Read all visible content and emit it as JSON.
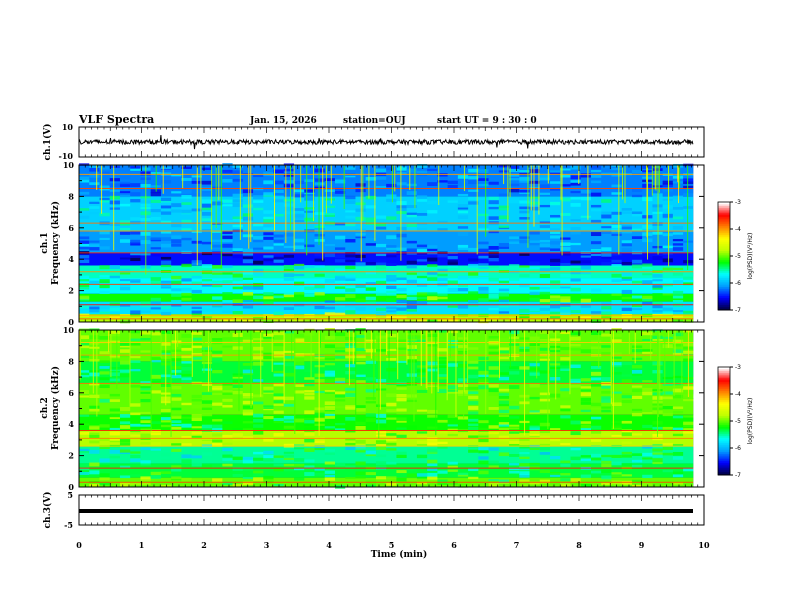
{
  "header": {
    "title": "VLF Spectra",
    "date": "Jan. 15, 2026",
    "station": "station=OUJ",
    "start_ut": "start UT =  9 : 30 : 0"
  },
  "colors": {
    "spectrogram_scale": [
      "#000040",
      "#0000ff",
      "#00a0ff",
      "#00ffff",
      "#00ff00",
      "#c0ff00",
      "#ffff00",
      "#ff8000",
      "#ff0000",
      "#ffffff"
    ]
  },
  "chart_data": [
    {
      "type": "line",
      "panel": "ch1-waveform",
      "ylabel": "ch.1(V)",
      "ylim": [
        -10,
        10
      ],
      "ytick_labels": [
        "10",
        "-10"
      ],
      "description_values": {
        "baseline_v": 0,
        "noise_amplitude_v": 1.5
      }
    },
    {
      "type": "heatmap",
      "panel": "ch1-spectrogram",
      "ylabel": "ch.1\nFrequency (kHz)",
      "ylim": [
        0,
        10
      ],
      "ytick_labels": [
        "0",
        "2",
        "4",
        "6",
        "8",
        "10"
      ],
      "x_end_min": 9.8,
      "colorbar": {
        "label": "log(PSD)(V²/Hz)",
        "range": [
          -7,
          -3
        ],
        "tick_labels": [
          "-3",
          "-4",
          "-5",
          "-6",
          "-7"
        ]
      },
      "bands_khz": [
        {
          "f0": 0.0,
          "f1": 0.5,
          "level": 0.55
        },
        {
          "f0": 0.5,
          "f1": 1.3,
          "level": 0.3
        },
        {
          "f0": 1.3,
          "f1": 1.8,
          "level": 0.45
        },
        {
          "f0": 1.8,
          "f1": 2.8,
          "level": 0.33
        },
        {
          "f0": 2.8,
          "f1": 3.6,
          "level": 0.36
        },
        {
          "f0": 3.6,
          "f1": 4.4,
          "level": 0.12
        },
        {
          "f0": 4.4,
          "f1": 5.8,
          "level": 0.22
        },
        {
          "f0": 5.8,
          "f1": 8.0,
          "level": 0.28
        },
        {
          "f0": 8.0,
          "f1": 10.0,
          "level": 0.2
        }
      ],
      "spectral_lines_khz": [
        0.2,
        0.4,
        1.1,
        2.4,
        3.2,
        4.4,
        5.8,
        6.3,
        8.5,
        9.4
      ],
      "impulse_count": 70
    },
    {
      "type": "heatmap",
      "panel": "ch2-spectrogram",
      "ylabel": "ch.2\nFrequency (kHz)",
      "ylim": [
        0,
        10
      ],
      "ytick_labels": [
        "0",
        "2",
        "4",
        "6",
        "8",
        "10"
      ],
      "x_end_min": 9.8,
      "colorbar": {
        "label": "log(PSD)(V²/Hz)",
        "range": [
          -7,
          -3
        ],
        "tick_labels": [
          "-3",
          "-4",
          "-5",
          "-6",
          "-7"
        ]
      },
      "bands_khz": [
        {
          "f0": 0.0,
          "f1": 0.6,
          "level": 0.5
        },
        {
          "f0": 0.6,
          "f1": 1.5,
          "level": 0.42
        },
        {
          "f0": 1.5,
          "f1": 2.6,
          "level": 0.38
        },
        {
          "f0": 2.6,
          "f1": 3.6,
          "level": 0.55
        },
        {
          "f0": 3.6,
          "f1": 4.6,
          "level": 0.45
        },
        {
          "f0": 4.6,
          "f1": 6.6,
          "level": 0.5
        },
        {
          "f0": 6.6,
          "f1": 8.0,
          "level": 0.42
        },
        {
          "f0": 8.0,
          "f1": 10.0,
          "level": 0.5
        }
      ],
      "spectral_lines_khz": [
        0.3,
        1.2,
        2.6,
        3.1,
        3.6,
        6.6,
        8.4,
        9.2
      ],
      "impulse_count": 90
    },
    {
      "type": "line",
      "panel": "ch3-waveform",
      "ylabel": "ch.3(V)",
      "ylim": [
        -5,
        5
      ],
      "ytick_labels": [
        "5",
        "-5"
      ],
      "description_values": {
        "baseline_v": 0,
        "noise_amplitude_v": 0.4
      }
    }
  ],
  "x_axis": {
    "label": "Time (min)",
    "range": [
      0,
      10
    ],
    "tick_labels": [
      "0",
      "1",
      "2",
      "3",
      "4",
      "5",
      "6",
      "7",
      "8",
      "9",
      "10"
    ]
  }
}
